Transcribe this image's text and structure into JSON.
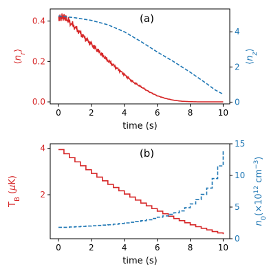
{
  "colors": {
    "left": "#d62728",
    "right": "#1f77b4",
    "axis": "#000000"
  },
  "chart_data": [
    {
      "type": "line",
      "panel_label": "(a)",
      "xlabel": "time (s)",
      "ylabel_left": "⟨n_r⟩",
      "ylabel_right": "⟨n_z⟩",
      "xlim": [
        -0.5,
        10.4
      ],
      "ylim_left": [
        -0.01,
        0.46
      ],
      "ylim_right": [
        -0.1,
        5.3
      ],
      "xticks": [
        0,
        2,
        4,
        6,
        8,
        10
      ],
      "yticks_left": [
        0.0,
        0.2,
        0.4
      ],
      "ytick_labels_left": [
        "0.0",
        "0.2",
        "0.4"
      ],
      "yticks_right": [
        0,
        2,
        4
      ],
      "ytick_labels_right": [
        "0",
        "2",
        "4"
      ],
      "series": [
        {
          "axis": "left",
          "style": "solid",
          "noisy": true,
          "x": [
            0,
            0.25,
            0.5,
            1,
            1.5,
            2,
            2.5,
            3,
            3.5,
            4,
            4.5,
            5,
            5.5,
            6,
            6.5,
            7,
            7.5,
            8,
            8.5,
            9,
            9.5,
            10
          ],
          "values": [
            0.415,
            0.42,
            0.41,
            0.37,
            0.325,
            0.285,
            0.245,
            0.205,
            0.17,
            0.135,
            0.1,
            0.075,
            0.05,
            0.03,
            0.017,
            0.008,
            0.003,
            0.001,
            0.0,
            0.0,
            0.0,
            0.0
          ]
        },
        {
          "axis": "right",
          "style": "dashed",
          "x": [
            0,
            1,
            2,
            3,
            4,
            5,
            6,
            7,
            8,
            9,
            9.5,
            10
          ],
          "values": [
            4.9,
            4.8,
            4.65,
            4.4,
            4.0,
            3.45,
            2.85,
            2.3,
            1.7,
            1.05,
            0.7,
            0.45
          ]
        }
      ]
    },
    {
      "type": "line",
      "panel_label": "(b)",
      "xlabel": "time (s)",
      "ylabel_left": "T_B (μK)",
      "ylabel_right": "n_0(×10^12 cm^-3)",
      "xlim": [
        -0.5,
        10.4
      ],
      "ylim_left": [
        0.1,
        4.2
      ],
      "ylim_right": [
        0,
        15
      ],
      "xticks": [
        0,
        2,
        4,
        6,
        8,
        10
      ],
      "yticks_left": [
        2,
        4
      ],
      "ytick_labels_left": [
        "2",
        "4"
      ],
      "yticks_right": [
        0,
        5,
        10,
        15
      ],
      "ytick_labels_right": [
        "0",
        "5",
        "10",
        "15"
      ],
      "series": [
        {
          "axis": "left",
          "style": "solid",
          "step": true,
          "x": [
            0,
            0.333,
            0.667,
            1,
            1.333,
            1.667,
            2,
            2.333,
            2.667,
            3,
            3.333,
            3.667,
            4,
            4.333,
            4.667,
            5,
            5.333,
            5.667,
            6,
            6.333,
            6.667,
            7,
            7.333,
            7.667,
            8,
            8.333,
            8.667,
            9,
            9.333,
            9.667,
            10
          ],
          "values": [
            3.95,
            3.77,
            3.6,
            3.42,
            3.25,
            3.08,
            2.92,
            2.76,
            2.6,
            2.45,
            2.31,
            2.17,
            2.03,
            1.9,
            1.77,
            1.64,
            1.52,
            1.4,
            1.29,
            1.18,
            1.07,
            0.97,
            0.88,
            0.79,
            0.7,
            0.62,
            0.55,
            0.48,
            0.41,
            0.35,
            0.3
          ]
        },
        {
          "axis": "right",
          "style": "dashed",
          "step": true,
          "x": [
            0,
            0.333,
            0.667,
            1,
            1.333,
            1.667,
            2,
            2.333,
            2.667,
            3,
            3.333,
            3.667,
            4,
            4.333,
            4.667,
            5,
            5.333,
            5.667,
            6,
            6.333,
            6.667,
            7,
            7.333,
            7.667,
            8,
            8.333,
            8.667,
            9,
            9.333,
            9.667,
            10
          ],
          "values": [
            1.8,
            1.8,
            1.85,
            1.9,
            1.95,
            2.0,
            2.05,
            2.1,
            2.15,
            2.2,
            2.3,
            2.4,
            2.5,
            2.6,
            2.7,
            2.85,
            3.0,
            3.2,
            3.4,
            3.6,
            3.85,
            4.1,
            4.4,
            4.9,
            5.5,
            6.2,
            7.0,
            8.0,
            9.5,
            11.5,
            14.0
          ]
        }
      ]
    }
  ]
}
